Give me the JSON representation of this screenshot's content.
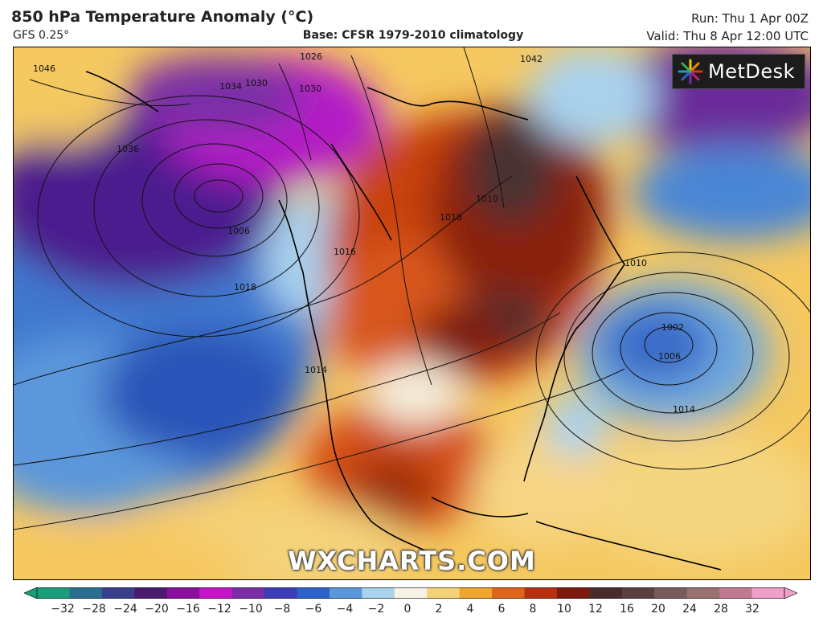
{
  "header": {
    "title": "850 hPa Temperature Anomaly (°C)",
    "model": "GFS 0.25°",
    "base": "Base: CFSR 1979-2010 climatology",
    "run": "Run: Thu 1 Apr 00Z",
    "valid": "Valid: Thu 8 Apr 12:00 UTC"
  },
  "brand": {
    "name": "MetDesk",
    "icon": "metdesk-logo-icon"
  },
  "watermark": "WXCHARTS.COM",
  "isobar_labels": [
    "1046",
    "1036",
    "1030",
    "1026",
    "1030",
    "1006",
    "1018",
    "1010",
    "1016",
    "1018",
    "1010",
    "1002",
    "1006",
    "1014",
    "1014",
    "1034",
    "1042"
  ],
  "colorbar": {
    "ticks": [
      "−32",
      "−28",
      "−24",
      "−20",
      "−16",
      "−12",
      "−10",
      "−8",
      "−6",
      "−4",
      "−2",
      "0",
      "2",
      "4",
      "6",
      "8",
      "10",
      "12",
      "16",
      "20",
      "24",
      "28",
      "32"
    ],
    "colors": [
      "#1a9e7a",
      "#2a6f8f",
      "#3a3f8c",
      "#4b1b6e",
      "#8a0f9c",
      "#c615c9",
      "#7a2da6",
      "#3b3cb8",
      "#2c62c9",
      "#5b97db",
      "#a9d2ee",
      "#f6f2e4",
      "#f4d27a",
      "#f0a52e",
      "#e0651c",
      "#b7300f",
      "#7d1a10",
      "#4a2a2a",
      "#5a4040",
      "#7a5a5a",
      "#9a7070",
      "#c07a90",
      "#f0a0c8"
    ]
  }
}
